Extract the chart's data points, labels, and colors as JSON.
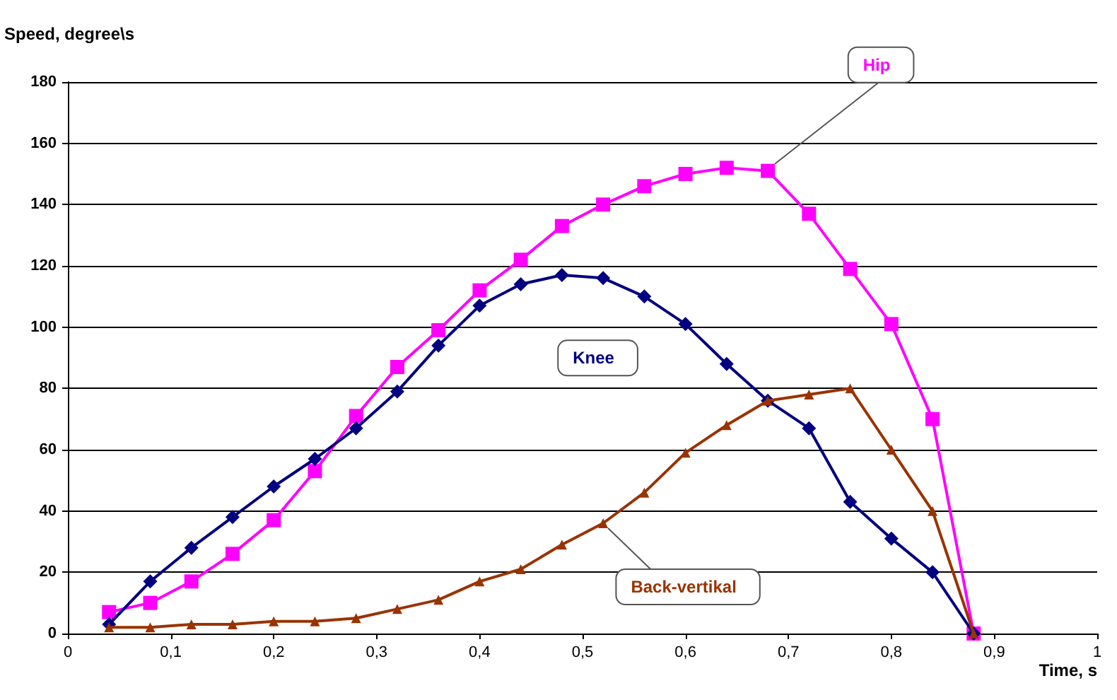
{
  "chart_data": {
    "type": "line",
    "xlabel": "Time, s",
    "ylabel": "Speed, degree\\s",
    "x": [
      0.04,
      0.08,
      0.12,
      0.16,
      0.2,
      0.24,
      0.28,
      0.32,
      0.36,
      0.4,
      0.44,
      0.48,
      0.52,
      0.56,
      0.6,
      0.64,
      0.68,
      0.72,
      0.76,
      0.8,
      0.84,
      0.88
    ],
    "series": [
      {
        "name": "Hip",
        "color": "#ff00ff",
        "marker": "square",
        "values": [
          7,
          10,
          17,
          26,
          37,
          53,
          71,
          87,
          99,
          112,
          122,
          133,
          140,
          146,
          150,
          152,
          151,
          137,
          119,
          101,
          70,
          0
        ]
      },
      {
        "name": "Knee",
        "color": "#000080",
        "marker": "diamond",
        "values": [
          3,
          17,
          28,
          38,
          48,
          57,
          67,
          79,
          94,
          107,
          114,
          117,
          116,
          110,
          101,
          88,
          76,
          67,
          43,
          31,
          20,
          0
        ]
      },
      {
        "name": "Back-vertikal",
        "color": "#993300",
        "marker": "triangle",
        "values": [
          2,
          2,
          3,
          3,
          4,
          4,
          5,
          8,
          11,
          17,
          21,
          29,
          36,
          46,
          59,
          68,
          76,
          78,
          80,
          60,
          40,
          0
        ]
      }
    ],
    "xlim": [
      0,
      1
    ],
    "xticks": [
      0,
      {
        "value": 0.1,
        "label": "0,1"
      },
      {
        "value": 0.2,
        "label": "0,2"
      },
      {
        "value": 0.3,
        "label": "0,3"
      },
      {
        "value": 0.4,
        "label": "0,4"
      },
      {
        "value": 0.5,
        "label": "0,5"
      },
      {
        "value": 0.6,
        "label": "0,6"
      },
      {
        "value": 0.7,
        "label": "0,7"
      },
      {
        "value": 0.8,
        "label": "0,8"
      },
      {
        "value": 0.9,
        "label": "0,9"
      },
      1
    ],
    "ylim": [
      0,
      180
    ],
    "yticks": [
      0,
      20,
      40,
      60,
      80,
      100,
      120,
      140,
      160,
      180
    ],
    "grid": "y",
    "legend": false
  }
}
